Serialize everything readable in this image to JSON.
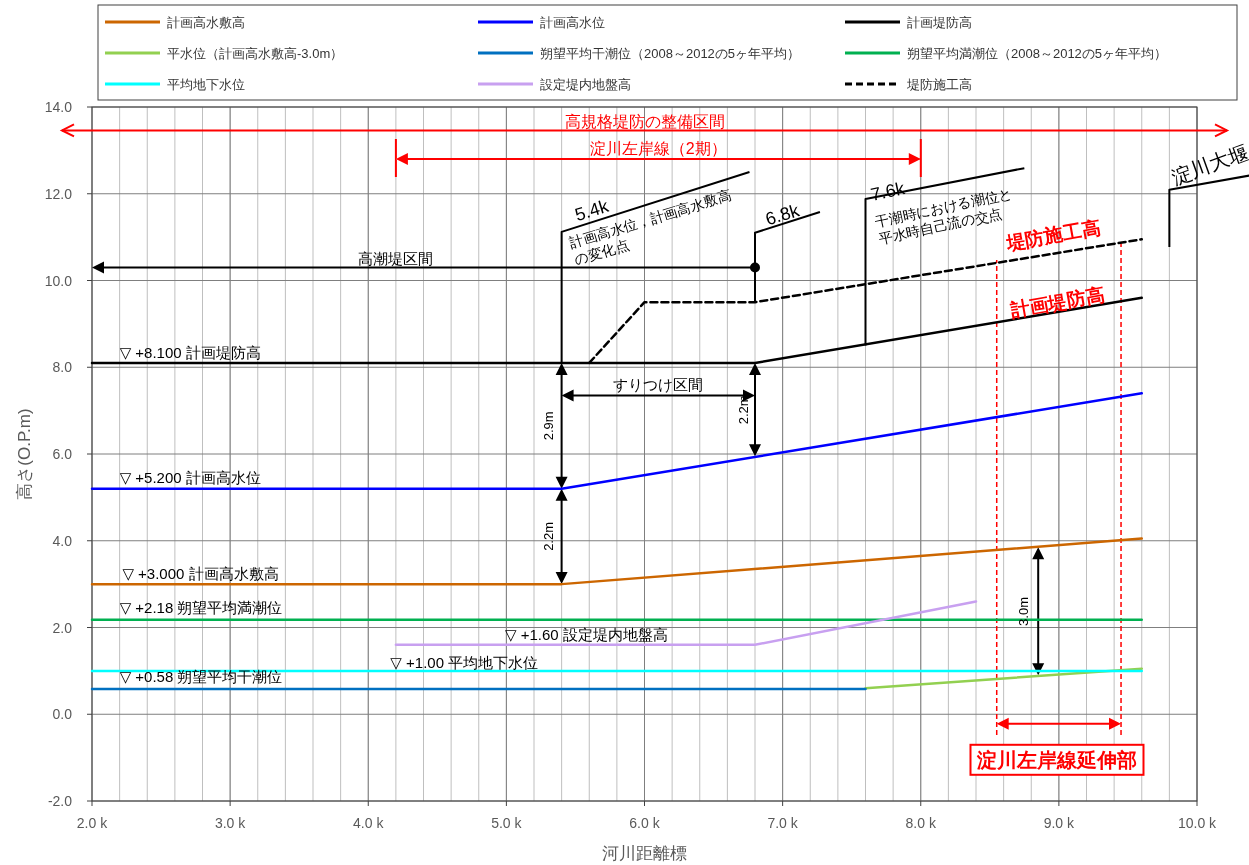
{
  "chart_data": {
    "type": "line",
    "xlabel": "河川距離標",
    "ylabel": "高さ(O.P.m)",
    "xlim": [
      2.0,
      10.0
    ],
    "ylim": [
      -2.0,
      14.0
    ],
    "xticks": [
      {
        "value": 2,
        "label": "2.0 k"
      },
      {
        "value": 3,
        "label": "3.0 k"
      },
      {
        "value": 4,
        "label": "4.0 k"
      },
      {
        "value": 5,
        "label": "5.0 k"
      },
      {
        "value": 6,
        "label": "6.0 k"
      },
      {
        "value": 7,
        "label": "7.0 k"
      },
      {
        "value": 8,
        "label": "8.0 k"
      },
      {
        "value": 9,
        "label": "9.0 k"
      },
      {
        "value": 10,
        "label": "10.0 k"
      }
    ],
    "yticks": [
      {
        "value": -2,
        "label": "-2.0"
      },
      {
        "value": 0,
        "label": "0.0"
      },
      {
        "value": 2,
        "label": "2.0"
      },
      {
        "value": 4,
        "label": "4.0"
      },
      {
        "value": 6,
        "label": "6.0"
      },
      {
        "value": 8,
        "label": "8.0"
      },
      {
        "value": 10,
        "label": "10.0"
      },
      {
        "value": 12,
        "label": "12.0"
      },
      {
        "value": 14,
        "label": "14.0"
      }
    ],
    "grid": true,
    "legend": "top",
    "series": [
      {
        "name": "計画高水敷高",
        "color": "#cc6600",
        "x": [
          2.0,
          5.4,
          9.6
        ],
        "values": [
          3.0,
          3.0,
          4.05
        ]
      },
      {
        "name": "計画高水位",
        "color": "#0000ff",
        "x": [
          2.0,
          5.4,
          9.6
        ],
        "values": [
          5.2,
          5.2,
          7.4
        ]
      },
      {
        "name": "計画堤防高",
        "color": "#000000",
        "x": [
          2.0,
          6.8,
          9.6
        ],
        "values": [
          8.1,
          8.1,
          9.6
        ]
      },
      {
        "name": "平水位（計画高水敷高-3.0m）",
        "color": "#92d050",
        "x": [
          7.6,
          9.6
        ],
        "values": [
          0.6,
          1.05
        ]
      },
      {
        "name": "朔望平均干潮位（2008～2012の5ヶ年平均）",
        "color": "#0070c0",
        "x": [
          2.0,
          7.6
        ],
        "values": [
          0.58,
          0.58
        ]
      },
      {
        "name": "朔望平均満潮位（2008～2012の5ヶ年平均）",
        "color": "#00b050",
        "x": [
          2.0,
          9.6
        ],
        "values": [
          2.18,
          2.18
        ]
      },
      {
        "name": "平均地下水位",
        "color": "#00ffff",
        "x": [
          2.0,
          9.6
        ],
        "values": [
          1.0,
          1.0
        ]
      },
      {
        "name": "設定堤内地盤高",
        "color": "#c8a0f0",
        "x": [
          4.2,
          6.8,
          8.4
        ],
        "values": [
          1.6,
          1.6,
          2.6
        ]
      },
      {
        "name": "堤防施工高",
        "color": "#000000",
        "line_style": "dashed",
        "x": [
          5.6,
          6.0,
          6.8,
          9.6
        ],
        "values": [
          8.1,
          9.5,
          9.5,
          10.95
        ]
      }
    ],
    "ref_lines": [
      {
        "axis": "y",
        "value": 13.46,
        "label": "高規格堤防の整備区間",
        "color": "#ff0000"
      },
      {
        "axis": "x",
        "value": 5.4,
        "label": "5.4k",
        "color": "#000000"
      },
      {
        "axis": "x",
        "value": 6.8,
        "label": "6.8k",
        "color": "#000000"
      },
      {
        "axis": "x",
        "value": 7.6,
        "label": "7.6k",
        "color": "#000000"
      },
      {
        "axis": "x",
        "value": 9.8,
        "label": "淀川大堰",
        "color": "#000000"
      },
      {
        "axis": "x",
        "value": 8.55,
        "color": "#ff0000",
        "line_style": "dashed"
      },
      {
        "axis": "x",
        "value": 9.45,
        "color": "#ff0000",
        "line_style": "dashed"
      }
    ],
    "annotations": [
      "淀川左岸線（2期）",
      "高潮堤区間",
      "計画高水位，計画高水敷高\nの変化点",
      "干潮時における潮位と\n平水時自己流の交点",
      "堤防施工高",
      "計画堤防高",
      "すりつけ区間",
      "2.9m",
      "2.2m",
      "2.2m",
      "3.0m",
      "▽ +8.100 計画堤防高",
      "▽ +5.200 計画高水位",
      "▽ +3.000 計画高水敷高",
      "▽ +2.18 朔望平均満潮位",
      "▽ +1.60 設定堤内地盤高",
      "▽ +1.00 平均地下水位",
      "▽ +0.58 朔望平均干潮位",
      "淀川左岸線延伸部"
    ]
  }
}
